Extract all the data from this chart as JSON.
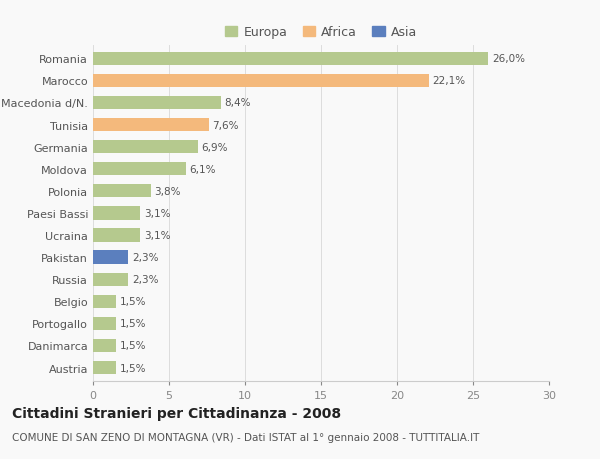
{
  "categories": [
    "Romania",
    "Marocco",
    "Macedonia d/N.",
    "Tunisia",
    "Germania",
    "Moldova",
    "Polonia",
    "Paesi Bassi",
    "Ucraina",
    "Pakistan",
    "Russia",
    "Belgio",
    "Portogallo",
    "Danimarca",
    "Austria"
  ],
  "values": [
    26.0,
    22.1,
    8.4,
    7.6,
    6.9,
    6.1,
    3.8,
    3.1,
    3.1,
    2.3,
    2.3,
    1.5,
    1.5,
    1.5,
    1.5
  ],
  "labels": [
    "26,0%",
    "22,1%",
    "8,4%",
    "7,6%",
    "6,9%",
    "6,1%",
    "3,8%",
    "3,1%",
    "3,1%",
    "2,3%",
    "2,3%",
    "1,5%",
    "1,5%",
    "1,5%",
    "1,5%"
  ],
  "continent": [
    "Europa",
    "Africa",
    "Europa",
    "Africa",
    "Europa",
    "Europa",
    "Europa",
    "Europa",
    "Europa",
    "Asia",
    "Europa",
    "Europa",
    "Europa",
    "Europa",
    "Europa"
  ],
  "colors": {
    "Europa": "#b5c98e",
    "Africa": "#f4b97c",
    "Asia": "#5b7fbe"
  },
  "xlim": [
    0,
    30
  ],
  "xticks": [
    0,
    5,
    10,
    15,
    20,
    25,
    30
  ],
  "title": "Cittadini Stranieri per Cittadinanza - 2008",
  "subtitle": "COMUNE DI SAN ZENO DI MONTAGNA (VR) - Dati ISTAT al 1° gennaio 2008 - TUTTITALIA.IT",
  "background_color": "#f9f9f9",
  "bar_height": 0.6,
  "label_fontsize": 7.5,
  "ytick_fontsize": 8.0,
  "xtick_fontsize": 8.0,
  "title_fontsize": 10.0,
  "subtitle_fontsize": 7.5,
  "legend_fontsize": 9.0
}
